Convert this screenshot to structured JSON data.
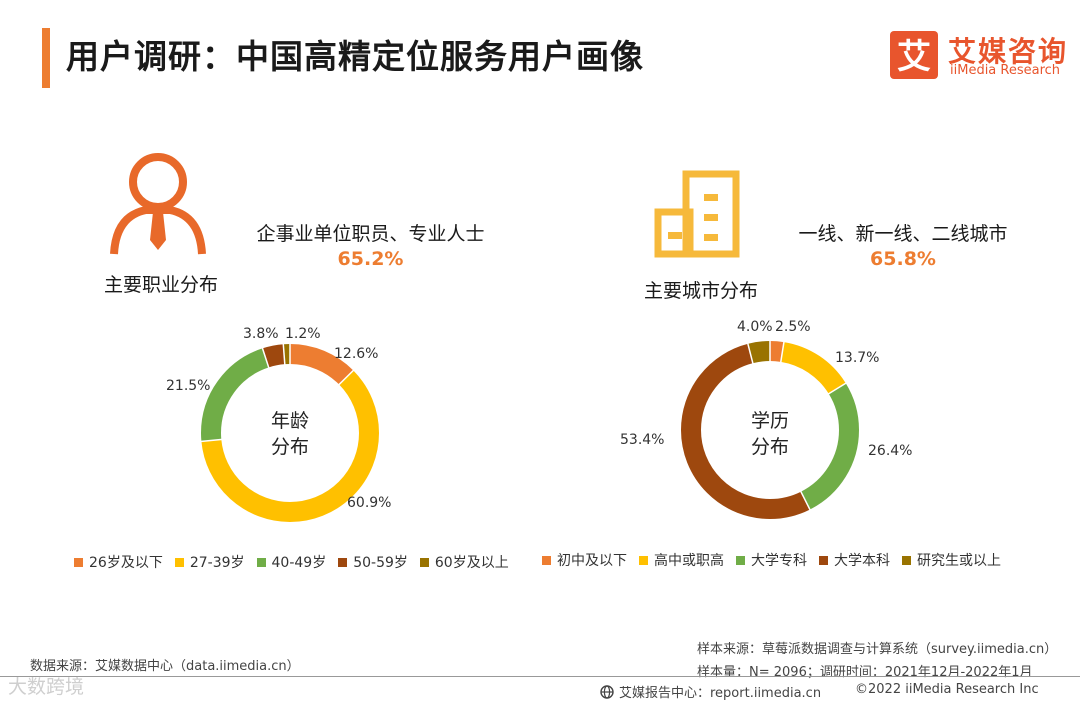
{
  "header": {
    "title": "用户调研：中国高精定位服务用户画像",
    "logo_text_cn": "艾媒咨询",
    "logo_text_en": "iiMedia Research",
    "logo_glyph": "艾",
    "accent_color": "#ed7d31"
  },
  "occupation": {
    "label": "主要职业分布",
    "main_text": "企事业单位职员、专业人士",
    "main_pct": "65.2%",
    "icon": "person-with-tie-icon"
  },
  "city": {
    "label": "主要城市分布",
    "main_text": "一线、新一线、二线城市",
    "main_pct": "65.8%",
    "icon": "office-building-icon"
  },
  "chart_data": [
    {
      "type": "pie",
      "center_label_line1": "年龄",
      "center_label_line2": "分布",
      "categories": [
        "26岁及以下",
        "27-39岁",
        "40-49岁",
        "50-59岁",
        "60岁及以上"
      ],
      "values": [
        12.6,
        60.9,
        21.5,
        3.8,
        1.2
      ],
      "value_labels": [
        "12.6%",
        "60.9%",
        "21.5%",
        "3.8%",
        "1.2%"
      ],
      "colors": [
        "#ed7d31",
        "#ffc000",
        "#70ad47",
        "#9e480e",
        "#997300"
      ],
      "legend_position": "bottom"
    },
    {
      "type": "pie",
      "center_label_line1": "学历",
      "center_label_line2": "分布",
      "categories": [
        "初中及以下",
        "高中或职高",
        "大学专科",
        "大学本科",
        "研究生或以上"
      ],
      "values": [
        2.5,
        13.7,
        26.4,
        53.4,
        4.0
      ],
      "value_labels": [
        "2.5%",
        "13.7%",
        "26.4%",
        "53.4%",
        "4.0%"
      ],
      "colors": [
        "#ed7d31",
        "#ffc000",
        "#70ad47",
        "#9e480e",
        "#997300"
      ],
      "legend_position": "bottom"
    }
  ],
  "footer": {
    "data_source": "数据来源：艾媒数据中心（data.iimedia.cn）",
    "sample_source": "样本来源：草莓派数据调查与计算系统（survey.iimedia.cn）",
    "sample_size": "样本量：N= 2096；调研时间：2021年12月-2022年1月",
    "report_center": "艾媒报告中心：report.iimedia.cn",
    "copyright": "©2022  iiMedia Research  Inc",
    "watermark": "大数跨境"
  }
}
